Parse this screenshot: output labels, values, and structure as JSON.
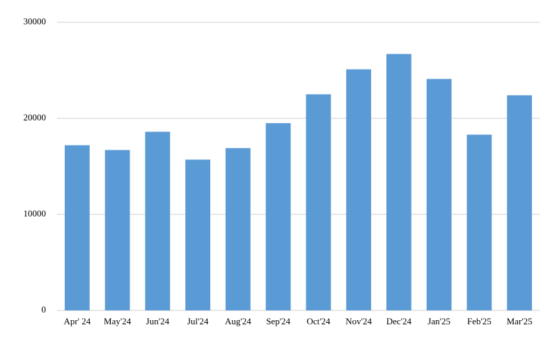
{
  "chart_data": {
    "type": "bar",
    "categories": [
      "Apr' 24",
      "May'24",
      "Jun'24",
      "Jul'24",
      "Aug'24",
      "Sep'24",
      "Oct'24",
      "Nov'24",
      "Dec'24",
      "Jan'25",
      "Feb'25",
      "Mar'25"
    ],
    "values": [
      17200,
      16700,
      18600,
      15700,
      16900,
      19500,
      22500,
      25100,
      26700,
      24100,
      18300,
      22400
    ],
    "color": "#5b9bd5",
    "ylim": [
      0,
      30000
    ],
    "yticks": [
      0,
      10000,
      20000,
      30000
    ],
    "grid": true
  }
}
